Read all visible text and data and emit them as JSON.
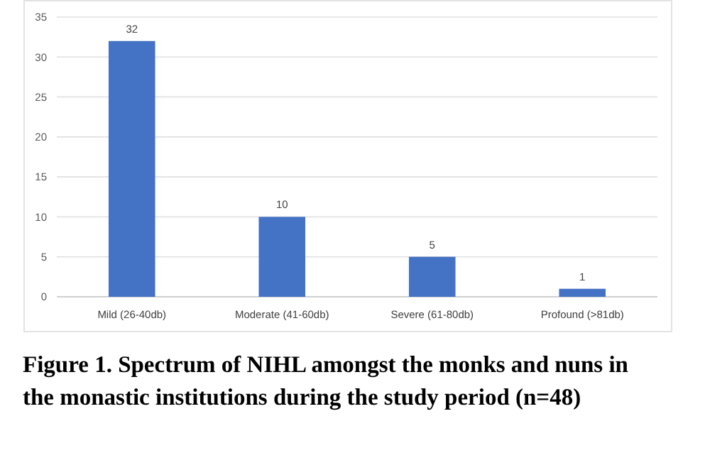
{
  "chart_data": {
    "type": "bar",
    "categories": [
      "Mild (26-40db)",
      "Moderate (41-60db)",
      "Severe (61-80db)",
      "Profound (>81db)"
    ],
    "values": [
      32,
      10,
      5,
      1
    ],
    "color": "#4472c4",
    "data_labels": true,
    "ylim": [
      0,
      35
    ],
    "yticks": [
      0,
      5,
      10,
      15,
      20,
      25,
      30,
      35
    ],
    "grid": "y",
    "annotations": [
      "Figure 1. Spectrum of NIHL amongst the monks and nuns in the monastic institutions during the study period (n=48)"
    ]
  }
}
